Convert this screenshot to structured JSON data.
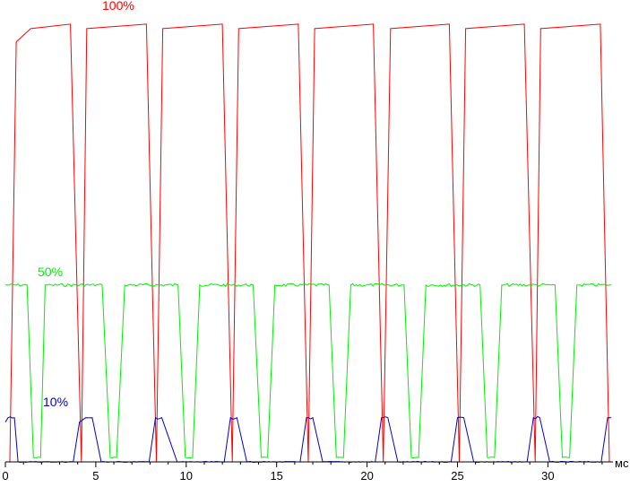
{
  "chart_data": {
    "type": "line",
    "xlabel": "мс",
    "ylabel": "",
    "xlim": [
      0,
      33.5
    ],
    "ylim": [
      0,
      100
    ],
    "grid": false,
    "x_ticks": [
      0,
      5,
      10,
      15,
      20,
      25,
      30
    ],
    "x_tick_labels": [
      "0",
      "5",
      "10",
      "15",
      "20",
      "25",
      "30"
    ],
    "period_ms": 4.17,
    "series": [
      {
        "name": "100%",
        "color": "#ff0000",
        "high": 99,
        "low": 0,
        "x": [
          0,
          0.25,
          0.6,
          1.4,
          3.6,
          4.2,
          4.5,
          7.8,
          8.35,
          8.7,
          12.0,
          12.55,
          12.9,
          16.2,
          16.75,
          17.1,
          20.35,
          20.9,
          21.3,
          24.55,
          25.1,
          25.45,
          28.7,
          29.3,
          29.6,
          32.9,
          33.4
        ],
        "values": [
          0,
          0,
          95,
          98,
          99,
          0,
          98,
          99,
          0,
          98,
          99,
          0,
          98,
          99,
          0,
          98,
          99,
          0,
          98,
          99,
          0,
          98,
          99,
          0,
          98,
          99,
          0
        ]
      },
      {
        "name": "50%",
        "color": "#00ee00",
        "high": 40,
        "low": 1,
        "x": [
          0,
          1.2,
          1.55,
          1.95,
          2.2,
          2.55,
          5.35,
          5.8,
          6.15,
          6.6,
          9.55,
          9.95,
          10.35,
          10.75,
          13.7,
          14.15,
          14.5,
          14.9,
          17.9,
          18.3,
          18.7,
          19.1,
          22.05,
          22.45,
          22.85,
          23.25,
          26.25,
          26.65,
          27.05,
          27.45,
          30.4,
          30.8,
          31.2,
          31.6,
          33.5
        ],
        "values": [
          40,
          40,
          1,
          1,
          40,
          40,
          40,
          1,
          1,
          40,
          40,
          1,
          1,
          40,
          40,
          1,
          1,
          40,
          40,
          1,
          1,
          40,
          40,
          1,
          1,
          40,
          40,
          1,
          1,
          40,
          40,
          1,
          1,
          40,
          40
        ]
      },
      {
        "name": "10%",
        "color": "#0000cc",
        "high": 10,
        "low": 0,
        "x": [
          0,
          0.15,
          0.5,
          0.7,
          1.5,
          3.75,
          4.1,
          4.45,
          4.8,
          5.3,
          7.95,
          8.3,
          8.65,
          9.5,
          12.1,
          12.45,
          12.8,
          13.35,
          16.3,
          16.65,
          17.0,
          17.55,
          20.45,
          20.8,
          21.15,
          21.7,
          24.65,
          25.0,
          25.35,
          25.9,
          28.85,
          29.2,
          29.55,
          30.1,
          32.95,
          33.3,
          33.5
        ],
        "values": [
          9,
          10,
          10,
          0,
          0,
          0,
          9,
          10,
          10,
          0,
          0,
          10,
          10,
          0,
          0,
          10,
          10,
          0,
          0,
          10,
          10,
          0,
          0,
          10,
          10,
          0,
          0,
          10,
          10,
          0,
          0,
          10,
          10,
          0,
          0,
          10,
          10
        ]
      }
    ]
  }
}
